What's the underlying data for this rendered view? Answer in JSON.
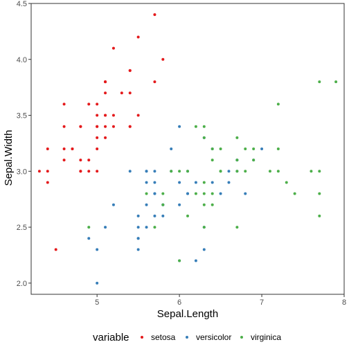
{
  "chart_data": {
    "type": "scatter",
    "xlabel": "Sepal.Length",
    "ylabel": "Sepal.Width",
    "xlim": [
      4.2,
      8.0
    ],
    "ylim": [
      1.9,
      4.5
    ],
    "x_ticks": [
      5,
      6,
      7,
      8
    ],
    "y_ticks": [
      2.0,
      2.5,
      3.0,
      3.5,
      4.0,
      4.5
    ],
    "x_tick_labels": [
      "5",
      "6",
      "7",
      "8"
    ],
    "y_tick_labels": [
      "2.0",
      "2.5",
      "3.0",
      "3.5",
      "4.0",
      "4.5"
    ],
    "grid": false,
    "legend": {
      "title": "variable",
      "position": "bottom",
      "entries": [
        "setosa",
        "versicolor",
        "virginica"
      ]
    },
    "series": [
      {
        "name": "setosa",
        "color": "#e41a1c",
        "points": [
          [
            4.3,
            3.0
          ],
          [
            4.4,
            3.0
          ],
          [
            4.4,
            3.2
          ],
          [
            4.4,
            2.9
          ],
          [
            4.5,
            2.3
          ],
          [
            4.6,
            3.1
          ],
          [
            4.6,
            3.4
          ],
          [
            4.6,
            3.6
          ],
          [
            4.6,
            3.2
          ],
          [
            4.7,
            3.2
          ],
          [
            4.7,
            3.2
          ],
          [
            4.8,
            3.4
          ],
          [
            4.8,
            3.0
          ],
          [
            4.8,
            3.4
          ],
          [
            4.8,
            3.1
          ],
          [
            4.8,
            3.0
          ],
          [
            4.9,
            3.0
          ],
          [
            4.9,
            3.1
          ],
          [
            4.9,
            3.6
          ],
          [
            5.0,
            3.6
          ],
          [
            5.0,
            3.4
          ],
          [
            5.0,
            3.0
          ],
          [
            5.0,
            3.4
          ],
          [
            5.0,
            3.2
          ],
          [
            5.0,
            3.5
          ],
          [
            5.0,
            3.3
          ],
          [
            5.1,
            3.5
          ],
          [
            5.1,
            3.5
          ],
          [
            5.1,
            3.8
          ],
          [
            5.1,
            3.8
          ],
          [
            5.1,
            3.7
          ],
          [
            5.1,
            3.3
          ],
          [
            5.1,
            3.4
          ],
          [
            5.1,
            3.8
          ],
          [
            5.2,
            3.5
          ],
          [
            5.2,
            3.4
          ],
          [
            5.2,
            4.1
          ],
          [
            5.3,
            3.7
          ],
          [
            5.4,
            3.9
          ],
          [
            5.4,
            3.7
          ],
          [
            5.4,
            3.9
          ],
          [
            5.4,
            3.4
          ],
          [
            5.4,
            3.4
          ],
          [
            5.5,
            4.2
          ],
          [
            5.5,
            3.5
          ],
          [
            5.7,
            4.4
          ],
          [
            5.7,
            3.8
          ],
          [
            5.8,
            4.0
          ]
        ]
      },
      {
        "name": "versicolor",
        "color": "#377eb8",
        "points": [
          [
            4.9,
            2.4
          ],
          [
            5.0,
            2.0
          ],
          [
            5.0,
            2.3
          ],
          [
            5.1,
            2.5
          ],
          [
            5.2,
            2.7
          ],
          [
            5.4,
            3.0
          ],
          [
            5.5,
            2.3
          ],
          [
            5.5,
            2.4
          ],
          [
            5.5,
            2.4
          ],
          [
            5.5,
            2.5
          ],
          [
            5.5,
            2.6
          ],
          [
            5.6,
            2.9
          ],
          [
            5.6,
            3.0
          ],
          [
            5.6,
            2.5
          ],
          [
            5.6,
            2.7
          ],
          [
            5.6,
            3.0
          ],
          [
            5.7,
            2.8
          ],
          [
            5.7,
            2.6
          ],
          [
            5.7,
            3.0
          ],
          [
            5.7,
            2.9
          ],
          [
            5.7,
            2.8
          ],
          [
            5.8,
            2.7
          ],
          [
            5.8,
            2.7
          ],
          [
            5.8,
            2.6
          ],
          [
            5.9,
            3.0
          ],
          [
            5.9,
            3.2
          ],
          [
            6.0,
            2.2
          ],
          [
            6.0,
            2.9
          ],
          [
            6.0,
            2.7
          ],
          [
            6.0,
            3.4
          ],
          [
            6.1,
            2.8
          ],
          [
            6.1,
            2.8
          ],
          [
            6.1,
            3.0
          ],
          [
            6.2,
            2.2
          ],
          [
            6.2,
            2.9
          ],
          [
            6.3,
            2.5
          ],
          [
            6.3,
            3.3
          ],
          [
            6.3,
            2.3
          ],
          [
            6.4,
            3.2
          ],
          [
            6.4,
            2.9
          ],
          [
            6.5,
            2.8
          ],
          [
            6.6,
            2.9
          ],
          [
            6.6,
            3.0
          ],
          [
            6.7,
            3.1
          ],
          [
            6.7,
            3.0
          ],
          [
            6.7,
            3.1
          ],
          [
            6.8,
            2.8
          ],
          [
            6.9,
            3.1
          ],
          [
            7.0,
            3.2
          ]
        ]
      },
      {
        "name": "virginica",
        "color": "#4daf4a",
        "points": [
          [
            4.9,
            2.5
          ],
          [
            5.6,
            2.8
          ],
          [
            5.7,
            2.5
          ],
          [
            5.8,
            2.7
          ],
          [
            5.8,
            2.8
          ],
          [
            5.9,
            3.0
          ],
          [
            6.0,
            2.2
          ],
          [
            6.0,
            3.0
          ],
          [
            6.1,
            3.0
          ],
          [
            6.1,
            2.6
          ],
          [
            6.2,
            2.8
          ],
          [
            6.2,
            3.4
          ],
          [
            6.3,
            3.3
          ],
          [
            6.3,
            2.9
          ],
          [
            6.3,
            2.5
          ],
          [
            6.3,
            2.8
          ],
          [
            6.3,
            3.4
          ],
          [
            6.3,
            2.7
          ],
          [
            6.4,
            2.8
          ],
          [
            6.4,
            3.2
          ],
          [
            6.4,
            2.7
          ],
          [
            6.4,
            3.1
          ],
          [
            6.5,
            3.0
          ],
          [
            6.5,
            3.2
          ],
          [
            6.5,
            3.0
          ],
          [
            6.7,
            2.5
          ],
          [
            6.7,
            3.3
          ],
          [
            6.7,
            3.1
          ],
          [
            6.7,
            3.0
          ],
          [
            6.8,
            3.0
          ],
          [
            6.8,
            3.2
          ],
          [
            6.9,
            3.2
          ],
          [
            6.9,
            3.1
          ],
          [
            7.1,
            3.0
          ],
          [
            7.2,
            3.6
          ],
          [
            7.2,
            3.2
          ],
          [
            7.2,
            3.0
          ],
          [
            7.3,
            2.9
          ],
          [
            7.4,
            2.8
          ],
          [
            7.6,
            3.0
          ],
          [
            7.7,
            3.8
          ],
          [
            7.7,
            2.6
          ],
          [
            7.7,
            2.8
          ],
          [
            7.7,
            3.0
          ],
          [
            7.9,
            3.8
          ]
        ]
      }
    ]
  }
}
